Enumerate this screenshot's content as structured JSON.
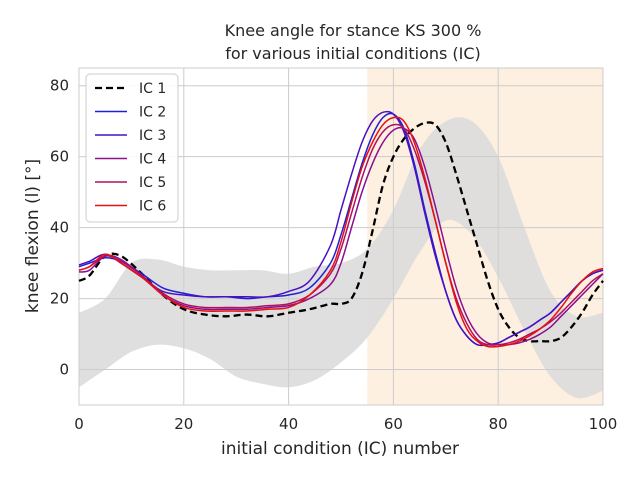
{
  "chart_data": {
    "type": "line",
    "title": [
      "Knee angle for stance KS 300 %",
      "for various initial conditions (IC)"
    ],
    "xlabel": "initial condition (IC) number",
    "ylabel": "knee flexion (l) [°]",
    "xlim": [
      0,
      100
    ],
    "ylim": [
      -10,
      85
    ],
    "xticks": [
      0,
      20,
      40,
      60,
      80,
      100
    ],
    "yticks": [
      0,
      20,
      40,
      60,
      80
    ],
    "grid": true,
    "legend_position": "top-left",
    "highlight_region": {
      "x_start": 55,
      "x_end": 100,
      "color": "#fdf0e0"
    },
    "band": {
      "color": "#dcdcdc",
      "x": [
        0,
        5,
        10,
        15,
        20,
        25,
        30,
        35,
        40,
        45,
        50,
        55,
        60,
        65,
        70,
        75,
        80,
        85,
        90,
        95,
        100
      ],
      "upper": [
        16,
        20,
        30,
        31,
        29,
        28,
        28,
        28,
        27,
        29,
        30,
        34,
        45,
        62,
        70,
        70,
        60,
        40,
        22,
        15,
        16
      ],
      "lower": [
        -5,
        0,
        5,
        7,
        6,
        3,
        -2,
        -4,
        -5,
        -3,
        2,
        9,
        20,
        33,
        42,
        38,
        26,
        11,
        -2,
        -8,
        -6
      ]
    },
    "x": [
      0,
      2,
      5,
      8,
      12,
      16,
      20,
      24,
      28,
      32,
      36,
      40,
      44,
      48,
      50,
      52,
      54,
      56,
      58,
      60,
      62,
      64,
      66,
      68,
      70,
      72,
      74,
      76,
      78,
      80,
      82,
      84,
      86,
      88,
      90,
      92,
      94,
      96,
      98,
      100
    ],
    "series": [
      {
        "name": "IC 1",
        "color": "#000000",
        "dash": true,
        "values": [
          25,
          26.5,
          32,
          32,
          27,
          21,
          17,
          15.5,
          15,
          15.5,
          15,
          16,
          17,
          18.5,
          18.5,
          20,
          27,
          39,
          52,
          60,
          65,
          68,
          69.5,
          69,
          64,
          55,
          45,
          35,
          25,
          17,
          12,
          9,
          8,
          8,
          8,
          9,
          12,
          16,
          21,
          25
        ]
      },
      {
        "name": "IC 2",
        "color": "#2020d8",
        "dash": false,
        "values": [
          29,
          30,
          31.5,
          30.5,
          27,
          23,
          21.5,
          20.5,
          20.5,
          20,
          20.5,
          21,
          23,
          30,
          38,
          48,
          58,
          66,
          71,
          72,
          68,
          58,
          45,
          33,
          22,
          14,
          9.5,
          7,
          7,
          7.5,
          9,
          10.5,
          12,
          14,
          16,
          19,
          22,
          25,
          27,
          28
        ]
      },
      {
        "name": "IC 3",
        "color": "#4a10c0",
        "dash": false,
        "values": [
          29.5,
          30.5,
          32.5,
          30,
          26,
          22,
          21,
          20.5,
          20.5,
          20.5,
          20.5,
          22,
          25,
          35,
          45,
          55,
          64,
          70,
          72.5,
          72,
          67,
          57,
          44,
          32,
          22,
          14,
          9.5,
          7,
          7,
          7.5,
          9,
          10.5,
          12,
          14,
          16,
          19,
          22,
          25,
          27,
          28
        ]
      },
      {
        "name": "IC 4",
        "color": "#8a1090",
        "dash": false,
        "values": [
          27.5,
          28,
          32,
          31,
          26.5,
          21,
          18,
          17,
          17,
          17,
          17.5,
          18,
          20,
          24,
          30,
          40,
          50,
          58,
          64,
          67.5,
          68,
          65,
          57,
          46,
          34,
          23,
          15,
          10,
          7.5,
          7,
          7,
          7.5,
          8.5,
          10,
          12,
          15,
          18,
          21,
          24,
          27
        ]
      },
      {
        "name": "IC 5",
        "color": "#b01060",
        "dash": false,
        "values": [
          28,
          29,
          32,
          30.5,
          26.5,
          21.5,
          18.5,
          17.5,
          17.5,
          17.5,
          18,
          18.5,
          21,
          27,
          34,
          44,
          54,
          62,
          67,
          69,
          68,
          62,
          53,
          42,
          30,
          20,
          13,
          8.5,
          7,
          7,
          7.5,
          8.5,
          10,
          11.5,
          13.5,
          16,
          19,
          22,
          25,
          27
        ]
      },
      {
        "name": "IC 6",
        "color": "#e81010",
        "dash": false,
        "values": [
          28,
          29,
          32.5,
          30,
          26,
          21,
          17.5,
          16.5,
          16.5,
          16.5,
          17,
          17.5,
          21,
          28,
          36,
          47,
          57,
          64,
          69,
          71,
          70,
          64,
          54,
          42,
          30,
          19,
          11.5,
          8,
          6.5,
          6.5,
          7,
          8,
          9.5,
          11.5,
          14,
          17.5,
          21.5,
          25,
          27.5,
          28.5
        ]
      }
    ]
  }
}
